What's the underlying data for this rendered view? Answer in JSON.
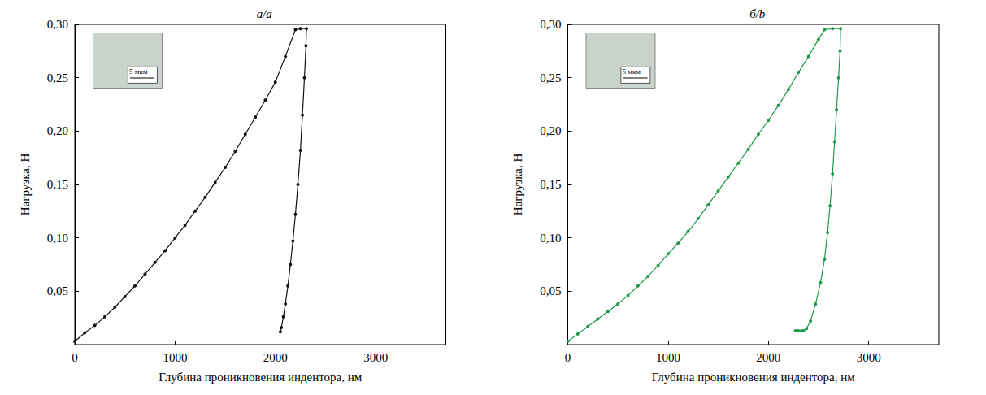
{
  "chart_data": [
    {
      "type": "line",
      "title": "а/a",
      "xlabel": "Глубина проникновения индентора, нм",
      "ylabel": "Нагрузка, Н",
      "annotation": "5 мкм",
      "xlim": [
        0,
        3700
      ],
      "xticks": [
        0,
        1000,
        2000,
        3000
      ],
      "ylim": [
        0,
        0.3
      ],
      "yticks": [
        {
          "value": 0.05,
          "label": "0,05"
        },
        {
          "value": 0.1,
          "label": "0,10"
        },
        {
          "value": 0.15,
          "label": "0,15"
        },
        {
          "value": 0.2,
          "label": "0,20"
        },
        {
          "value": 0.25,
          "label": "0,25"
        },
        {
          "value": 0.3,
          "label": "0,30"
        }
      ],
      "grid": false,
      "series": [
        {
          "color": "#111111",
          "marker": "circle",
          "line_style": "solid",
          "x": [
            0,
            100,
            200,
            300,
            400,
            500,
            600,
            700,
            800,
            900,
            1000,
            1100,
            1200,
            1300,
            1400,
            1500,
            1600,
            1700,
            1800,
            1900,
            2000,
            2100,
            2200,
            2250,
            2310,
            2305,
            2290,
            2270,
            2250,
            2225,
            2200,
            2175,
            2150,
            2125,
            2100,
            2080,
            2060,
            2050
          ],
          "y": [
            0.003,
            0.011,
            0.018,
            0.026,
            0.035,
            0.045,
            0.055,
            0.066,
            0.077,
            0.088,
            0.1,
            0.112,
            0.125,
            0.138,
            0.152,
            0.166,
            0.181,
            0.197,
            0.213,
            0.229,
            0.246,
            0.27,
            0.295,
            0.296,
            0.296,
            0.28,
            0.25,
            0.215,
            0.182,
            0.15,
            0.122,
            0.097,
            0.075,
            0.055,
            0.038,
            0.026,
            0.016,
            0.012
          ]
        }
      ]
    },
    {
      "type": "line",
      "title": "б/b",
      "xlabel": "Глубина проникновения индентора, нм",
      "ylabel": "Нагрузка, Н",
      "annotation": "5 мкм",
      "xlim": [
        0,
        3700
      ],
      "xticks": [
        0,
        1000,
        2000,
        3000
      ],
      "ylim": [
        0,
        0.3
      ],
      "yticks": [
        {
          "value": 0.05,
          "label": "0,05"
        },
        {
          "value": 0.1,
          "label": "0,10"
        },
        {
          "value": 0.15,
          "label": "0,15"
        },
        {
          "value": 0.2,
          "label": "0,20"
        },
        {
          "value": 0.25,
          "label": "0,25"
        },
        {
          "value": 0.3,
          "label": "0,30"
        }
      ],
      "grid": false,
      "series": [
        {
          "color": "#1f9a4a",
          "marker": "circle",
          "line_style": "solid",
          "x": [
            0,
            100,
            200,
            300,
            400,
            500,
            600,
            700,
            800,
            900,
            1000,
            1100,
            1200,
            1300,
            1400,
            1500,
            1600,
            1700,
            1800,
            1900,
            2000,
            2100,
            2200,
            2300,
            2400,
            2500,
            2560,
            2640,
            2720,
            2715,
            2700,
            2680,
            2660,
            2640,
            2615,
            2590,
            2560,
            2520,
            2470,
            2420,
            2380,
            2350,
            2330,
            2300,
            2270
          ],
          "y": [
            0.003,
            0.01,
            0.017,
            0.024,
            0.031,
            0.038,
            0.046,
            0.055,
            0.064,
            0.074,
            0.085,
            0.095,
            0.106,
            0.118,
            0.131,
            0.144,
            0.157,
            0.17,
            0.183,
            0.197,
            0.21,
            0.224,
            0.239,
            0.255,
            0.27,
            0.286,
            0.295,
            0.296,
            0.296,
            0.275,
            0.25,
            0.22,
            0.19,
            0.16,
            0.13,
            0.105,
            0.08,
            0.058,
            0.038,
            0.022,
            0.015,
            0.013,
            0.013,
            0.013,
            0.013
          ]
        }
      ]
    }
  ]
}
